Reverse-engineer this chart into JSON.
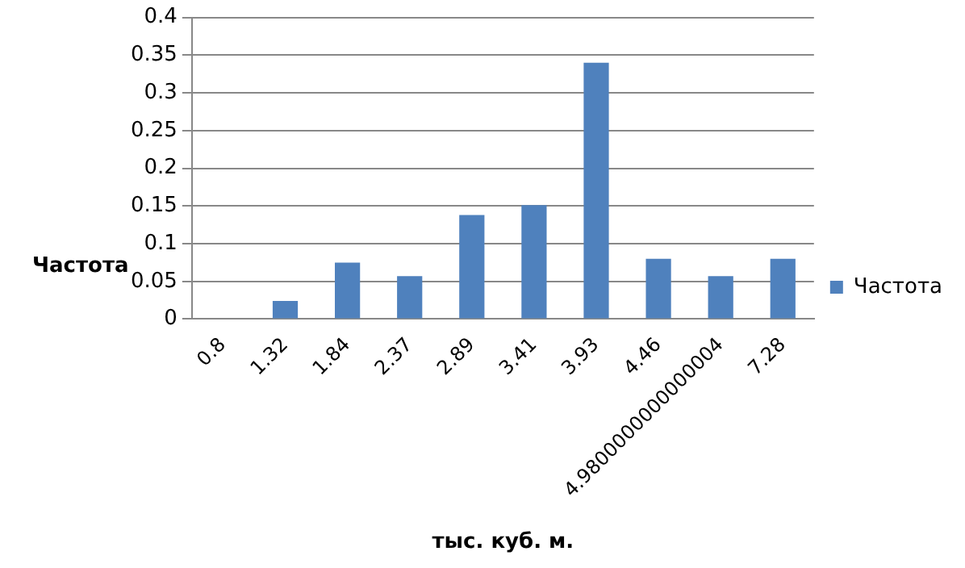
{
  "chart_data": {
    "type": "bar",
    "xlabel": "тыс. куб. м.",
    "ylabel": "Частота",
    "categories": [
      "0.8",
      "1.32",
      "1.84",
      "2.37",
      "2.89",
      "3.41",
      "3.93",
      "4.46",
      "4.9800000000000004",
      "7.28"
    ],
    "series": [
      {
        "name": "Частота",
        "color": "#4f81bd",
        "values": [
          0,
          0.024,
          0.075,
          0.057,
          0.138,
          0.151,
          0.34,
          0.08,
          0.057,
          0.08
        ]
      }
    ],
    "ylim": [
      0,
      0.4
    ],
    "yticks": [
      0,
      0.05,
      0.1,
      0.15,
      0.2,
      0.25,
      0.3,
      0.35,
      0.4
    ],
    "grid": "y",
    "legend": "right"
  }
}
